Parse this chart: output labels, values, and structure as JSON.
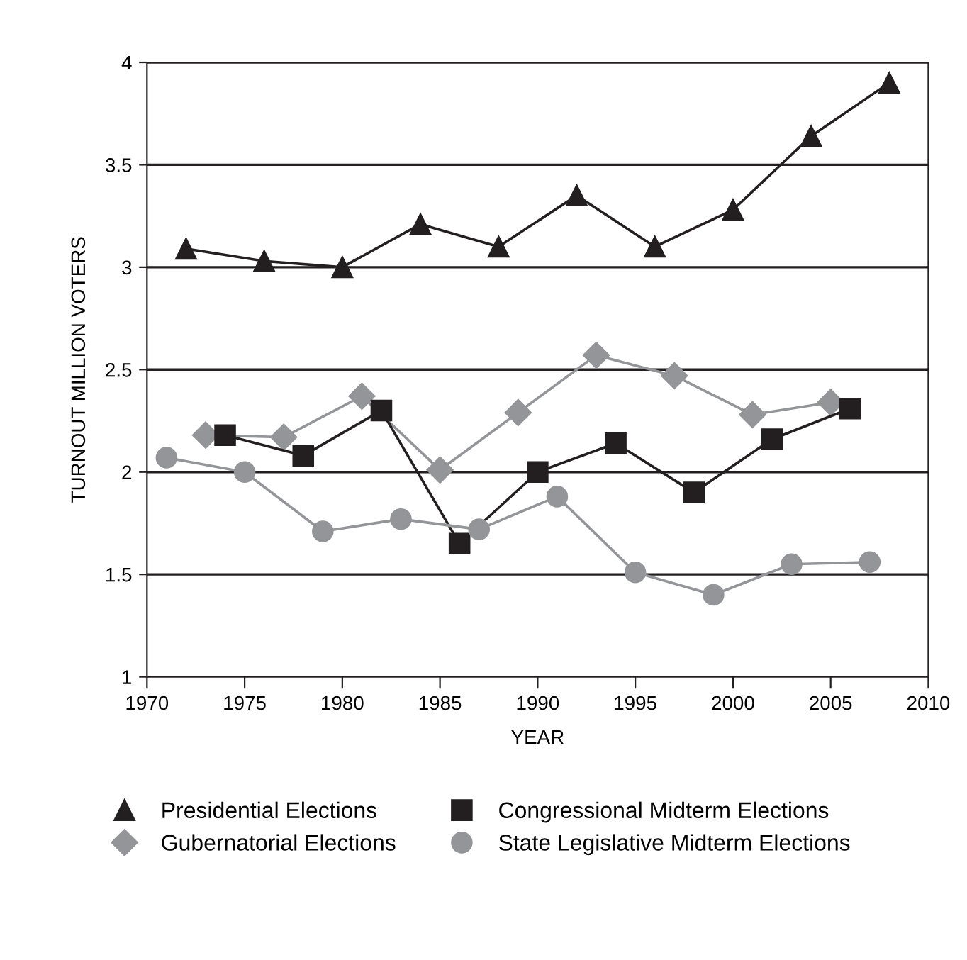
{
  "chart_data": {
    "type": "line",
    "xlabel": "YEAR",
    "ylabel": "TURNOUT MILLION VOTERS",
    "xlim": [
      1970,
      2010
    ],
    "ylim": [
      1,
      4
    ],
    "xticks": [
      1970,
      1975,
      1980,
      1985,
      1990,
      1995,
      2000,
      2005,
      2010
    ],
    "yticks": [
      1,
      1.5,
      2,
      2.5,
      3,
      3.5,
      4
    ],
    "grid": "y",
    "legend": "bottom",
    "series": [
      {
        "name": "Presidential Elections",
        "color": "#231f20",
        "marker": "triangle",
        "x": [
          1972,
          1976,
          1980,
          1984,
          1988,
          1992,
          1996,
          2000,
          2004,
          2008
        ],
        "values": [
          3.09,
          3.03,
          3.0,
          3.21,
          3.1,
          3.35,
          3.1,
          3.28,
          3.64,
          3.9
        ]
      },
      {
        "name": "Gubernatorial Elections",
        "color": "#939598",
        "marker": "diamond",
        "x": [
          1973,
          1977,
          1981,
          1985,
          1989,
          1993,
          1997,
          2001,
          2005
        ],
        "values": [
          2.18,
          2.17,
          2.37,
          2.01,
          2.29,
          2.57,
          2.47,
          2.28,
          2.34
        ]
      },
      {
        "name": "Congressional Midterm Elections",
        "color": "#231f20",
        "marker": "square",
        "x": [
          1974,
          1978,
          1982,
          1986,
          1990,
          1994,
          1998,
          2002,
          2006
        ],
        "values": [
          2.18,
          2.08,
          2.3,
          1.65,
          2.0,
          2.14,
          1.9,
          2.16,
          2.31
        ]
      },
      {
        "name": "State Legislative Midterm Elections",
        "color": "#939598",
        "marker": "circle",
        "x": [
          1971,
          1975,
          1979,
          1983,
          1987,
          1991,
          1995,
          1999,
          2003,
          2007
        ],
        "values": [
          2.07,
          2.0,
          1.71,
          1.77,
          1.72,
          1.88,
          1.51,
          1.4,
          1.55,
          1.56
        ]
      }
    ]
  }
}
